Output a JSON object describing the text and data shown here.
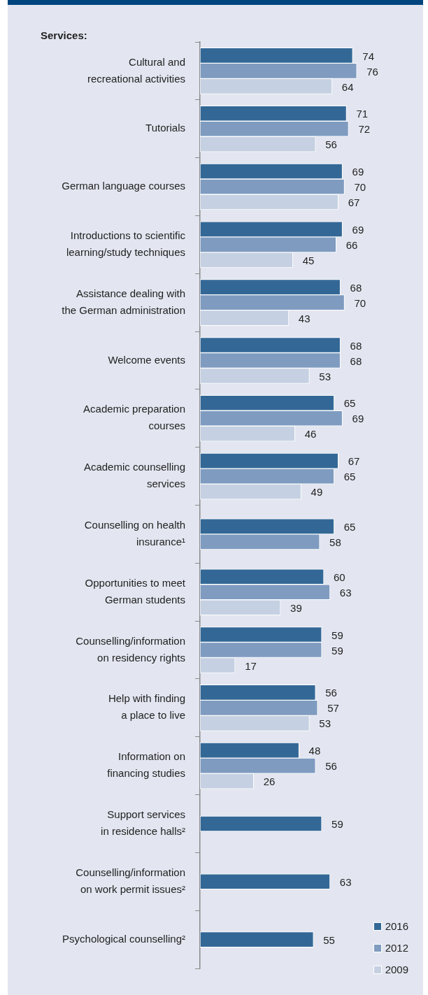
{
  "chart_data": {
    "type": "bar",
    "orientation": "horizontal",
    "title": "Services:",
    "categories": [
      "Cultural and\nrecreational activities",
      "Tutorials",
      "German language courses",
      "Introductions to scientific\nlearning/study techniques",
      "Assistance dealing with\nthe German administration",
      "Welcome events",
      "Academic preparation\ncourses",
      "Academic counselling\nservices",
      "Counselling on health\ninsurance¹",
      "Opportunities to meet\nGerman students",
      "Counselling/information\non residency rights",
      "Help with finding\na place to live",
      "Information on\nfinancing studies",
      "Support services\nin residence halls²",
      "Counselling/information\non work permit issues²",
      "Psychological counselling²"
    ],
    "series": [
      {
        "name": "2016",
        "color": "#336896",
        "values": [
          74,
          71,
          69,
          69,
          68,
          68,
          65,
          67,
          65,
          60,
          59,
          56,
          48,
          59,
          63,
          55
        ]
      },
      {
        "name": "2012",
        "color": "#7f9bc0",
        "values": [
          76,
          72,
          70,
          66,
          70,
          68,
          69,
          65,
          58,
          63,
          59,
          57,
          56,
          null,
          null,
          null
        ]
      },
      {
        "name": "2009",
        "color": "#c5d1e2",
        "values": [
          64,
          56,
          67,
          45,
          43,
          53,
          46,
          49,
          null,
          39,
          17,
          53,
          26,
          null,
          null,
          null
        ]
      }
    ],
    "tick_labels": "y",
    "legend": "bottom right",
    "data_labels": true
  }
}
